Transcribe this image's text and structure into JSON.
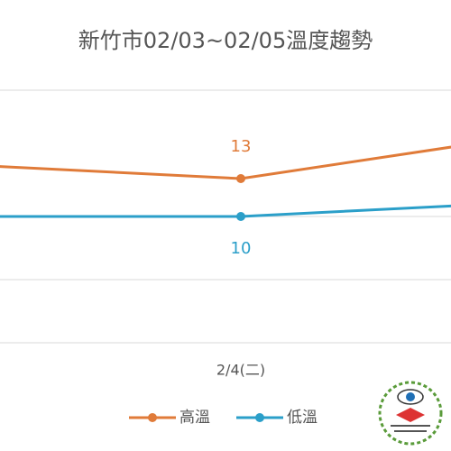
{
  "chart_data": {
    "type": "line",
    "title": "新竹市02/03~02/05溫度趨勢",
    "categories": [
      null,
      "2/4(二)",
      null
    ],
    "series": [
      {
        "name": "高溫",
        "color": "#e07b39",
        "values": [
          14,
          13,
          16
        ]
      },
      {
        "name": "低溫",
        "color": "#2b9fc9",
        "values": [
          10,
          10,
          11
        ]
      }
    ],
    "ylim": [
      0,
      20
    ],
    "yticks": [
      0,
      5,
      10
    ],
    "grid": true,
    "legend": "bottom"
  }
}
